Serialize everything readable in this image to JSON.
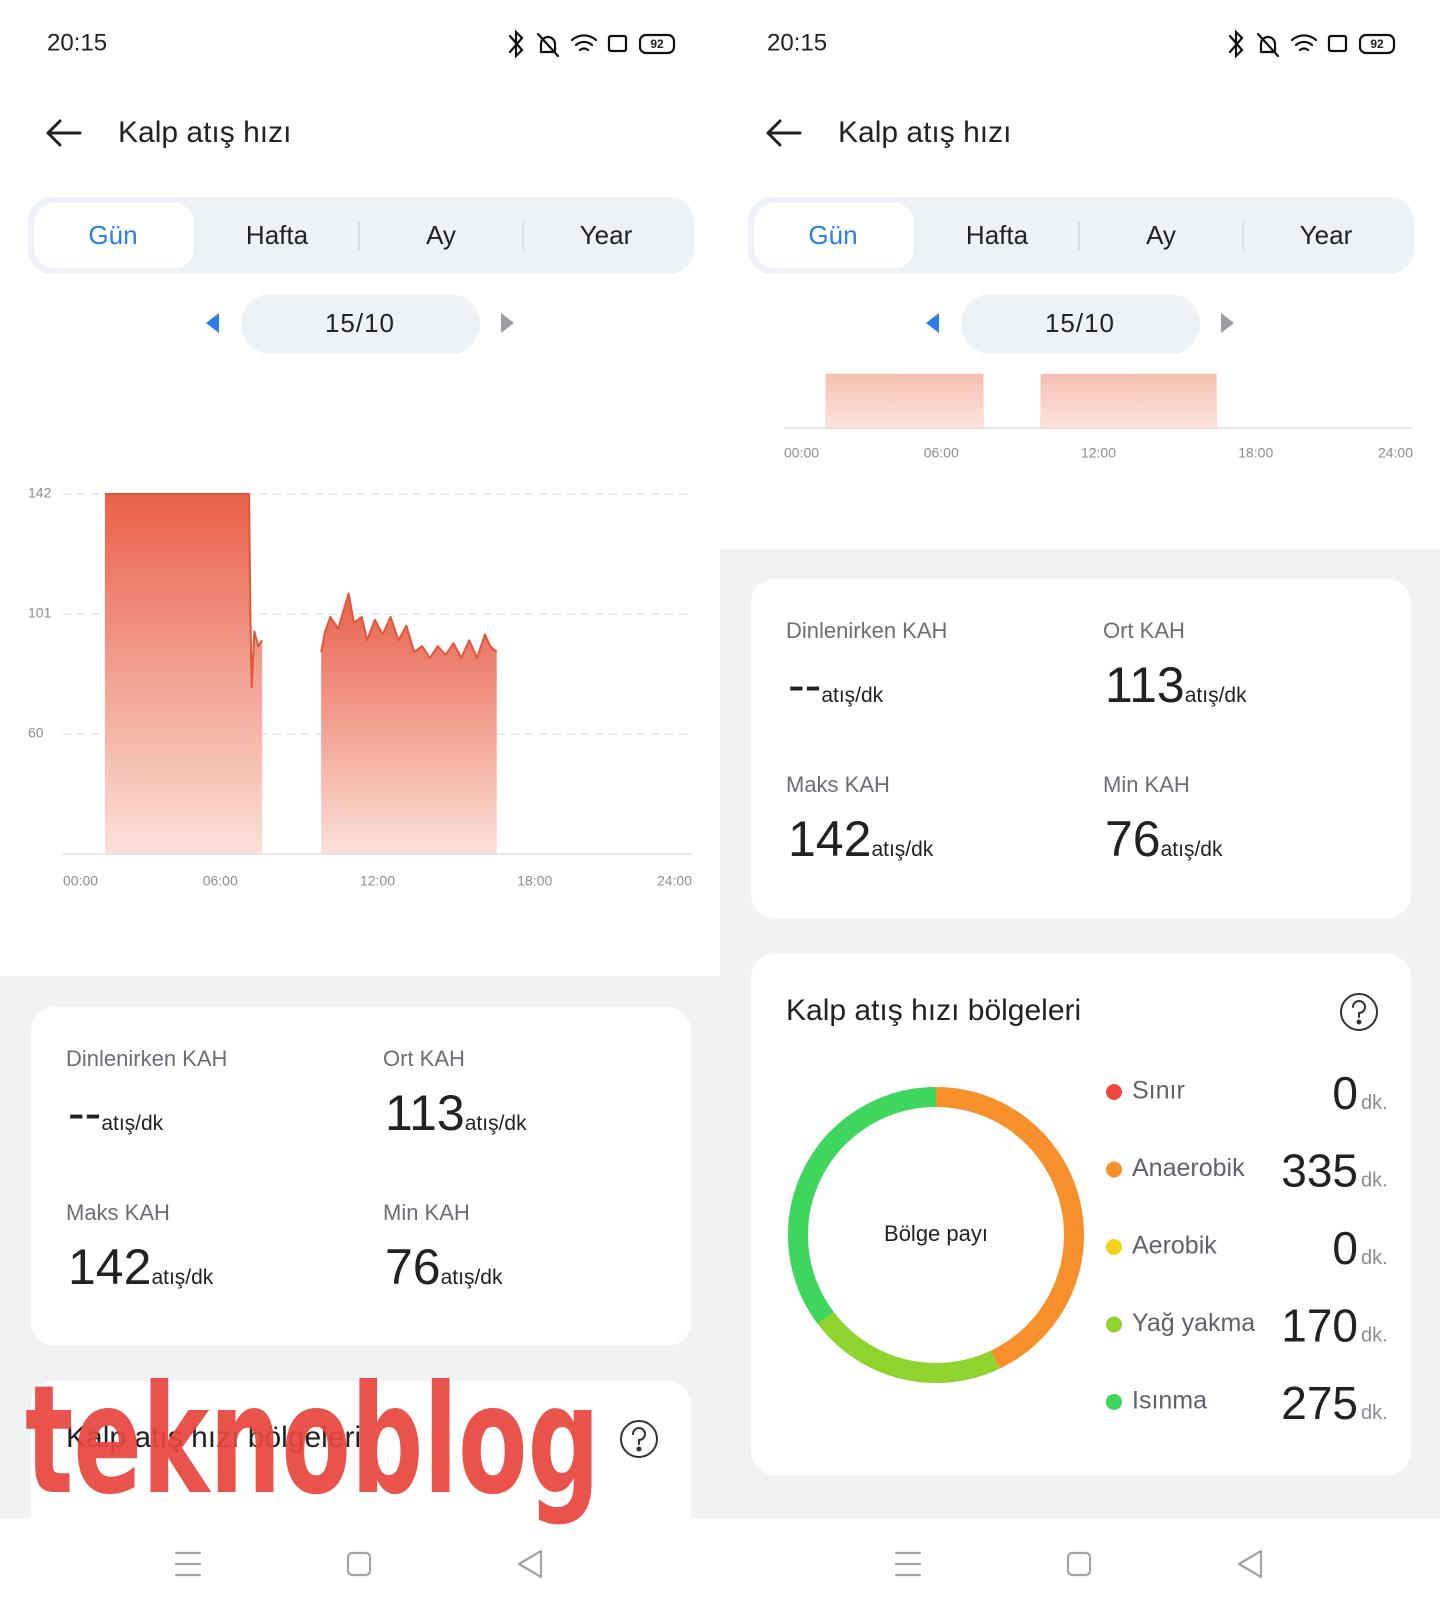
{
  "screens": [
    {
      "status": {
        "time": "20:15",
        "battery": "92"
      },
      "header": {
        "title": "Kalp atış hızı"
      },
      "tabs": [
        "Gün",
        "Hafta",
        "Ay",
        "Year"
      ],
      "date": "15/10",
      "chart_data": {
        "type": "area",
        "x": [
          1.6,
          7.1,
          7.15,
          7.2,
          7.3,
          7.45,
          7.6,
          8.7,
          9.85,
          10.0,
          10.2,
          10.5,
          10.9,
          11.1,
          11.4,
          11.6,
          11.9,
          12.2,
          12.5,
          12.8,
          13.1,
          13.4,
          13.7,
          14.0,
          14.3,
          14.6,
          14.9,
          15.2,
          15.5,
          15.8,
          16.1,
          16.3,
          16.55
        ],
        "values": [
          142,
          142,
          100,
          76,
          95,
          90,
          92,
          null,
          88,
          95,
          100,
          96,
          108,
          98,
          100,
          92,
          99,
          94,
          100,
          92,
          97,
          88,
          90,
          86,
          90,
          87,
          91,
          86,
          92,
          86,
          94,
          90,
          88
        ],
        "color": "#e2553d",
        "xlim": [
          0,
          24
        ],
        "xticks": [
          {
            "value": 0,
            "label": "00:00"
          },
          {
            "value": 6,
            "label": "06:00"
          },
          {
            "value": 12,
            "label": "12:00"
          },
          {
            "value": 18,
            "label": "18:00"
          },
          {
            "value": 24,
            "label": "24:00"
          }
        ],
        "ylim": [
          19,
          142
        ],
        "yticks": [
          60,
          101,
          142
        ],
        "grid": true
      },
      "stats": [
        {
          "label": "Dinlenirken KAH",
          "value": "--",
          "unit": "atış/dk"
        },
        {
          "label": "Ort KAH",
          "value": 113,
          "unit": "atış/dk"
        },
        {
          "label": "Maks KAH",
          "value": 142,
          "unit": "atış/dk"
        },
        {
          "label": "Min KAH",
          "value": 76,
          "unit": "atış/dk"
        }
      ],
      "zones": {
        "title": "Kalp atış hızı bölgeleri"
      },
      "watermark": "teknoblog"
    },
    {
      "status": {
        "time": "20:15",
        "battery": "92"
      },
      "header": {
        "title": "Kalp atış hızı"
      },
      "tabs": [
        "Gün",
        "Hafta",
        "Ay",
        "Year"
      ],
      "date": "15/10",
      "chart_data": {
        "type": "range",
        "ranges": [
          [
            1.6,
            7.6
          ],
          [
            9.8,
            16.5
          ]
        ],
        "color": "#f6c4b6",
        "xlim": [
          0,
          24
        ],
        "xticks": [
          {
            "value": 0,
            "label": "00:00"
          },
          {
            "value": 6,
            "label": "06:00"
          },
          {
            "value": 12,
            "label": "12:00"
          },
          {
            "value": 18,
            "label": "18:00"
          },
          {
            "value": 24,
            "label": "24:00"
          }
        ]
      },
      "stats": [
        {
          "label": "Dinlenirken KAH",
          "value": "--",
          "unit": "atış/dk"
        },
        {
          "label": "Ort KAH",
          "value": 113,
          "unit": "atış/dk"
        },
        {
          "label": "Maks KAH",
          "value": 142,
          "unit": "atış/dk"
        },
        {
          "label": "Min KAH",
          "value": 76,
          "unit": "atış/dk"
        }
      ],
      "zones": {
        "title": "Kalp atış hızı bölgeleri",
        "center_label": "Bölge payı",
        "items": [
          {
            "name": "Sınır",
            "value": 0,
            "unit": "dk.",
            "color": "#f0483e"
          },
          {
            "name": "Anaerobik",
            "value": 335,
            "unit": "dk.",
            "color": "#f7902a"
          },
          {
            "name": "Aerobik",
            "value": 0,
            "unit": "dk.",
            "color": "#f3d21e"
          },
          {
            "name": "Yağ yakma",
            "value": 170,
            "unit": "dk.",
            "color": "#8fd42e"
          },
          {
            "name": "Isınma",
            "value": 275,
            "unit": "dk.",
            "color": "#3ed65c"
          }
        ]
      }
    }
  ]
}
